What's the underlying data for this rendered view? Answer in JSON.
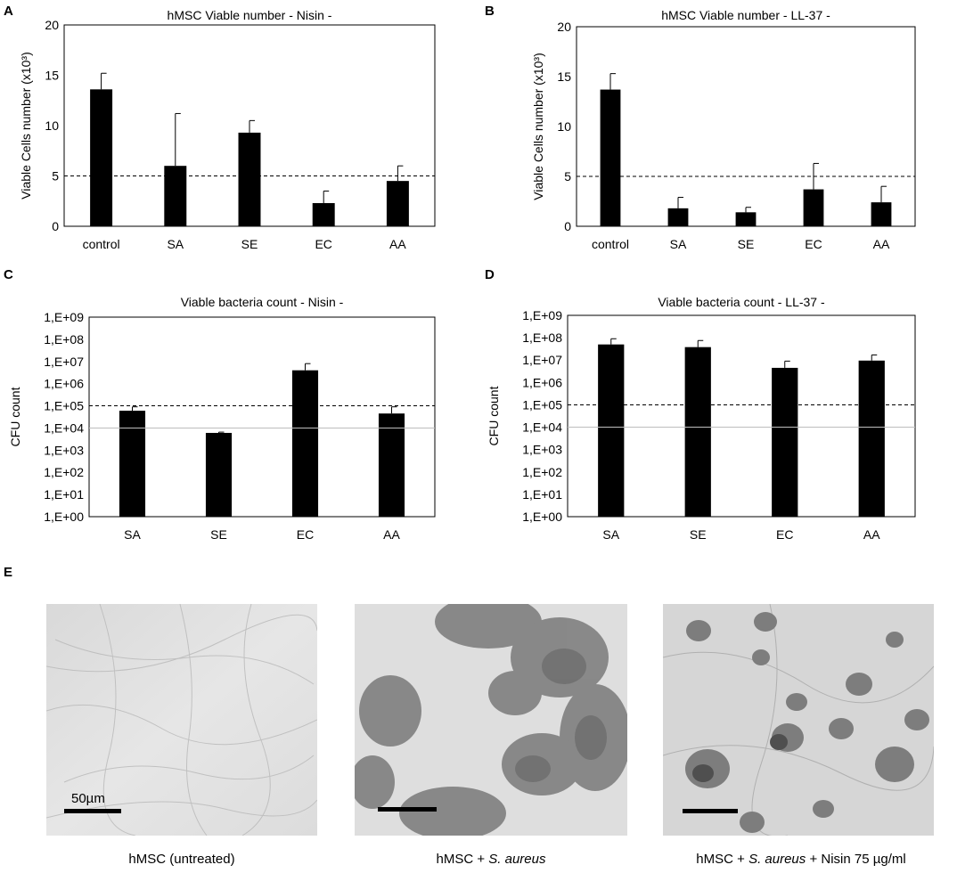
{
  "panels": {
    "A": {
      "letter": "A"
    },
    "B": {
      "letter": "B"
    },
    "C": {
      "letter": "C"
    },
    "D": {
      "letter": "D"
    },
    "E": {
      "letter": "E"
    }
  },
  "chart_data": [
    {
      "id": "A",
      "type": "bar",
      "title": "hMSC Viable number - Nisin -",
      "ylabel": "Viable Cells number (x10³)",
      "categories": [
        "control",
        "SA",
        "SE",
        "EC",
        "AA"
      ],
      "values": [
        13.6,
        6.0,
        9.3,
        2.3,
        4.5
      ],
      "errors": [
        1.6,
        5.2,
        1.2,
        1.2,
        1.5
      ],
      "ylim": [
        0,
        20
      ],
      "yticks": [
        "0",
        "5",
        "10",
        "15",
        "20"
      ],
      "scale": "linear",
      "threshold": 5,
      "threshold_style": "dashed"
    },
    {
      "id": "B",
      "type": "bar",
      "title": "hMSC Viable number - LL-37 -",
      "ylabel": "Viable Cells number (x10³)",
      "categories": [
        "control",
        "SA",
        "SE",
        "EC",
        "AA"
      ],
      "values": [
        13.7,
        1.8,
        1.4,
        3.7,
        2.4
      ],
      "errors": [
        1.6,
        1.1,
        0.5,
        2.6,
        1.6
      ],
      "ylim": [
        0,
        20
      ],
      "yticks": [
        "0",
        "5",
        "10",
        "15",
        "20"
      ],
      "scale": "linear",
      "threshold": 5,
      "threshold_style": "dashed"
    },
    {
      "id": "C",
      "type": "bar",
      "title": "Viable bacteria count - Nisin -",
      "ylabel": "CFU count",
      "categories": [
        "SA",
        "SE",
        "EC",
        "AA"
      ],
      "values": [
        60000,
        6000,
        4000000,
        45000
      ],
      "errors_upper": [
        90000,
        6500,
        8000000,
        90000
      ],
      "ylim": [
        1,
        1000000000
      ],
      "yticks": [
        "1,E+00",
        "1,E+01",
        "1,E+02",
        "1,E+03",
        "1,E+04",
        "1,E+05",
        "1,E+06",
        "1,E+07",
        "1,E+08",
        "1,E+09"
      ],
      "scale": "log",
      "threshold": 100000,
      "threshold_style": "dashed"
    },
    {
      "id": "D",
      "type": "bar",
      "title": "Viable bacteria count - LL-37 -",
      "ylabel": "CFU count",
      "categories": [
        "SA",
        "SE",
        "EC",
        "AA"
      ],
      "values": [
        50000000,
        38000000,
        4500000,
        9500000
      ],
      "errors_upper": [
        90000000,
        75000000,
        9000000,
        17000000
      ],
      "ylim": [
        1,
        1000000000
      ],
      "yticks": [
        "1,E+00",
        "1,E+01",
        "1,E+02",
        "1,E+03",
        "1,E+04",
        "1,E+05",
        "1,E+06",
        "1,E+07",
        "1,E+08",
        "1,E+09"
      ],
      "scale": "log",
      "threshold": 100000,
      "threshold_style": "dashed"
    }
  ],
  "micrographs": [
    {
      "caption_pre": "hMSC (untreated)",
      "caption_italic": "",
      "caption_post": "",
      "scale_label": "50µm"
    },
    {
      "caption_pre": "hMSC + ",
      "caption_italic": "S. aureus",
      "caption_post": "",
      "scale_label": ""
    },
    {
      "caption_pre": "hMSC + ",
      "caption_italic": "S. aureus",
      "caption_post": " + Nisin 75 µg/ml",
      "scale_label": ""
    }
  ]
}
